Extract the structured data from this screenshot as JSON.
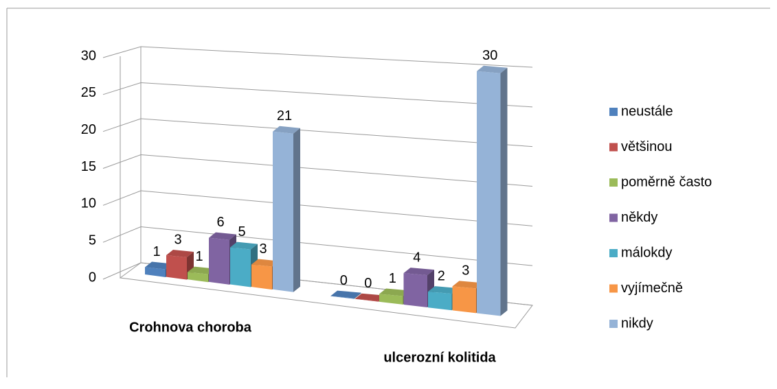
{
  "chart_data": {
    "type": "bar3d",
    "categories": [
      "Crohnova choroba",
      "ulcerozní kolitida"
    ],
    "series": [
      {
        "name": "neustále",
        "color": "#4f81bd",
        "values": [
          1,
          0
        ]
      },
      {
        "name": "většinou",
        "color": "#c0504d",
        "values": [
          3,
          0
        ]
      },
      {
        "name": "poměrně často",
        "color": "#9bbb59",
        "values": [
          1,
          1
        ]
      },
      {
        "name": "někdy",
        "color": "#8064a2",
        "values": [
          6,
          4
        ]
      },
      {
        "name": "málokdy",
        "color": "#4bacc6",
        "values": [
          5,
          2
        ]
      },
      {
        "name": "vyjímečně",
        "color": "#f79646",
        "values": [
          3,
          3
        ]
      },
      {
        "name": "nikdy",
        "color": "#95b3d7",
        "values": [
          21,
          30
        ]
      }
    ],
    "ylim": [
      0,
      30
    ],
    "yticks": [
      0,
      5,
      10,
      15,
      20,
      25,
      30
    ],
    "grid": true,
    "legend": "right"
  }
}
